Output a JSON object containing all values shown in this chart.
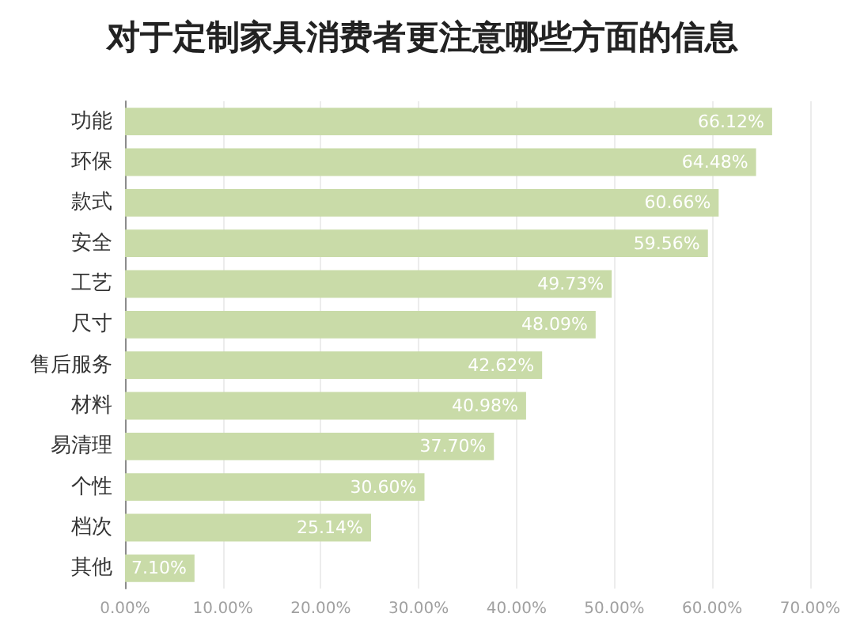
{
  "chart_data": {
    "type": "bar",
    "orientation": "horizontal",
    "title": "对于定制家具消费者更注意哪些方面的信息",
    "categories": [
      "功能",
      "环保",
      "款式",
      "安全",
      "工艺",
      "尺寸",
      "售后服务",
      "材料",
      "易清理",
      "个性",
      "档次",
      "其他"
    ],
    "values": [
      66.12,
      64.48,
      60.66,
      59.56,
      49.73,
      48.09,
      42.62,
      40.98,
      37.7,
      30.6,
      25.14,
      7.1
    ],
    "value_labels": [
      "66.12%",
      "64.48%",
      "60.66%",
      "59.56%",
      "49.73%",
      "48.09%",
      "42.62%",
      "40.98%",
      "37.70%",
      "30.60%",
      "25.14%",
      "7.10%"
    ],
    "color": "#c9dba8",
    "xlim": [
      0,
      70
    ],
    "xticks": [
      {
        "value": 0,
        "label": "0.00%"
      },
      {
        "value": 10,
        "label": "10.00%"
      },
      {
        "value": 20,
        "label": "20.00%"
      },
      {
        "value": 30,
        "label": "30.00%"
      },
      {
        "value": 40,
        "label": "40.00%"
      },
      {
        "value": 50,
        "label": "50.00%"
      },
      {
        "value": 60,
        "label": "60.00%"
      },
      {
        "value": 70,
        "label": "70.00%"
      }
    ],
    "grid": "x"
  }
}
